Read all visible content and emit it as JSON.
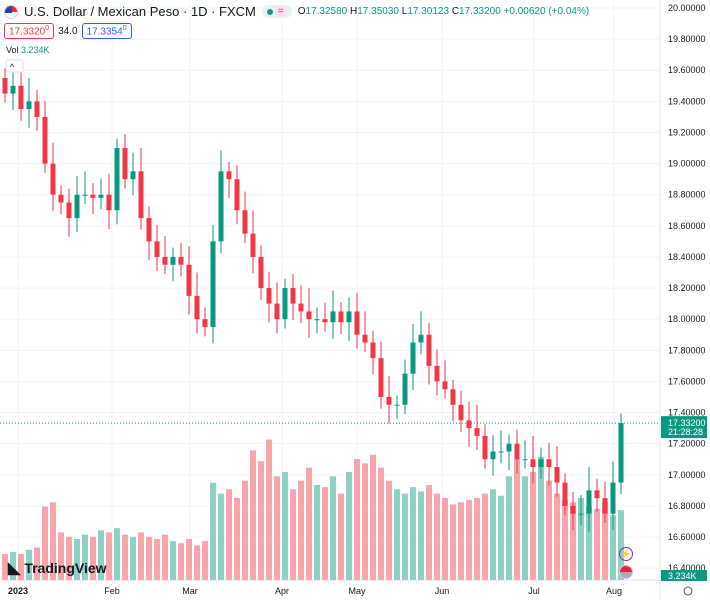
{
  "header": {
    "symbol_title": "U.S. Dollar / Mexican Peso · 1D · FXCM",
    "open_label": "O",
    "open": "17.32580",
    "high_label": "H",
    "high": "17.35030",
    "low_label": "L",
    "low": "17.30123",
    "close_label": "C",
    "close": "17.33200",
    "change": "+0.00620 (+0.04%)",
    "bid": "17.3320",
    "bid_sup": "0",
    "spread": "34.0",
    "ask": "17.3354",
    "ask_sup": "0",
    "vol_label": "Vol",
    "vol_value": "3.234K"
  },
  "branding": {
    "logo_text": "TradingView"
  },
  "price_label": {
    "price": "17.33200",
    "countdown": "21:28:28",
    "volume": "3.234K"
  },
  "colors": {
    "up": "#089981",
    "down": "#f23645",
    "up_vol": "#8fd0c5",
    "down_vol": "#f5a5ab"
  },
  "chart_data": {
    "type": "candlestick",
    "title": "U.S. Dollar / Mexican Peso · 1D · FXCM",
    "y_ticks": [
      "20.00000",
      "19.80000",
      "19.60000",
      "19.40000",
      "19.20000",
      "19.00000",
      "18.80000",
      "18.60000",
      "18.40000",
      "18.20000",
      "18.00000",
      "17.80000",
      "17.60000",
      "17.40000",
      "17.20000",
      "17.00000",
      "16.80000",
      "16.60000",
      "16.40000"
    ],
    "ylim": [
      16.4,
      20.0
    ],
    "x_ticks": [
      "2023",
      "Feb",
      "Mar",
      "Apr",
      "May",
      "Jun",
      "Jul",
      "Aug"
    ],
    "close": [
      19.45,
      19.5,
      19.35,
      19.4,
      19.3,
      19.0,
      18.8,
      18.75,
      18.65,
      18.8,
      18.8,
      18.78,
      18.8,
      18.7,
      19.1,
      18.9,
      18.95,
      18.65,
      18.5,
      18.4,
      18.35,
      18.4,
      18.35,
      18.15,
      18.0,
      17.95,
      18.5,
      18.95,
      18.9,
      18.7,
      18.55,
      18.4,
      18.2,
      18.1,
      18.0,
      18.2,
      18.1,
      18.05,
      18.0,
      18.0,
      17.98,
      18.05,
      17.98,
      18.05,
      17.9,
      17.85,
      17.75,
      17.5,
      17.45,
      17.45,
      17.65,
      17.85,
      17.9,
      17.7,
      17.6,
      17.55,
      17.45,
      17.35,
      17.3,
      17.25,
      17.1,
      17.15,
      17.15,
      17.2,
      17.1,
      17.1,
      17.05,
      17.1,
      17.05,
      16.95,
      16.8,
      16.75,
      16.75,
      16.9,
      16.85,
      16.75,
      16.95,
      17.332
    ],
    "volume_k": [
      1.2,
      1.3,
      1.2,
      1.4,
      1.5,
      3.4,
      3.6,
      2.2,
      2.0,
      1.9,
      2.1,
      2.0,
      2.3,
      2.2,
      2.4,
      2.1,
      2.0,
      2.2,
      2.0,
      1.9,
      2.1,
      1.8,
      1.7,
      1.9,
      1.6,
      1.8,
      4.5,
      4.0,
      4.2,
      3.8,
      4.6,
      6.0,
      5.5,
      6.5,
      4.8,
      5.0,
      4.2,
      4.6,
      5.2,
      4.4,
      4.3,
      4.8,
      4.0,
      5.0,
      5.6,
      5.4,
      5.8,
      5.2,
      4.6,
      4.2,
      4.0,
      4.3,
      4.1,
      4.4,
      4.0,
      3.8,
      3.5,
      3.6,
      3.7,
      3.8,
      4.0,
      4.2,
      3.9,
      4.8,
      5.6,
      4.8,
      5.0,
      5.7,
      4.6,
      4.0,
      3.7,
      3.6,
      3.8,
      3.4,
      3.3,
      3.6,
      3.0,
      3.234
    ],
    "first_open": 19.55
  }
}
